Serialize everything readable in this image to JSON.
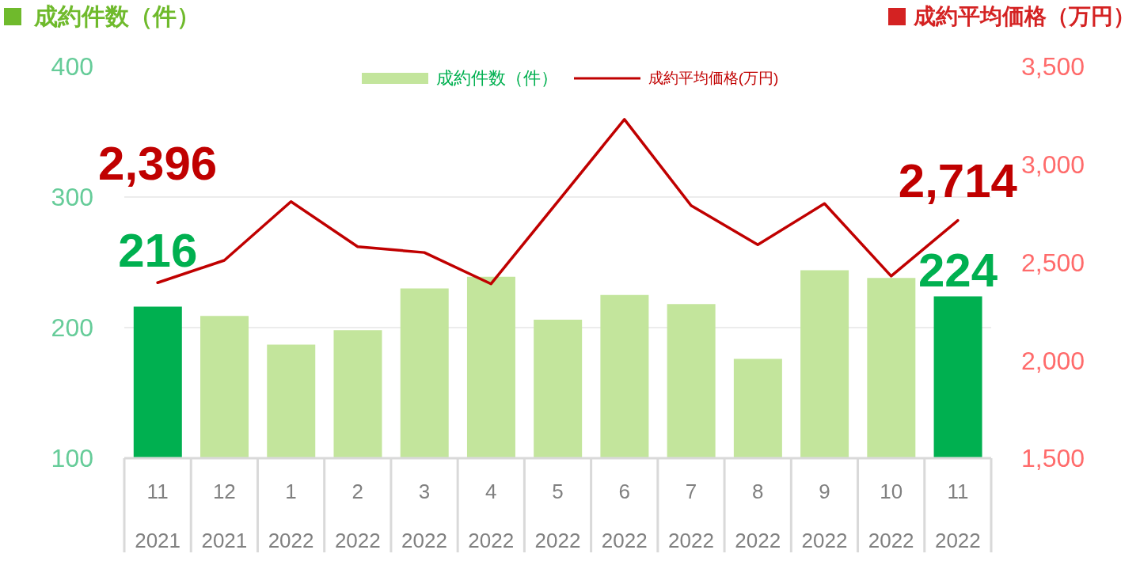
{
  "chart_data": {
    "type": "bar",
    "ylabel": "成約件数（件）",
    "y2label": "成約平均価格（万円）",
    "categories": [
      "11\n2021",
      "12\n2021",
      "1\n2022",
      "2\n2022",
      "3\n2022",
      "4\n2022",
      "5\n2022",
      "6\n2022",
      "7\n2022",
      "8\n2022",
      "9\n2022",
      "10\n2022",
      "11\n2022"
    ],
    "series": [
      {
        "name": "成約件数（件）",
        "color": "#c3e59c",
        "colors": [
          "#00b050",
          "#c3e59c",
          "#c3e59c",
          "#c3e59c",
          "#c3e59c",
          "#c3e59c",
          "#c3e59c",
          "#c3e59c",
          "#c3e59c",
          "#c3e59c",
          "#c3e59c",
          "#c3e59c",
          "#00b050"
        ],
        "values": [
          216,
          209,
          187,
          198,
          230,
          239,
          206,
          225,
          218,
          176,
          244,
          238,
          224
        ],
        "value_labels": [
          "216",
          null,
          null,
          null,
          null,
          null,
          null,
          null,
          null,
          null,
          null,
          null,
          "224"
        ]
      },
      {
        "name": "成約平均価格(万円)",
        "type": "line",
        "axis": "y2",
        "color": "#c00000",
        "values": [
          2396,
          2510,
          2810,
          2580,
          2550,
          2390,
          2810,
          3230,
          2790,
          2590,
          2800,
          2430,
          2714
        ],
        "value_labels": [
          "2,396",
          null,
          null,
          null,
          null,
          null,
          null,
          null,
          null,
          null,
          null,
          null,
          "2,714"
        ]
      }
    ],
    "ylim": [
      100,
      400
    ],
    "yticks": [
      100,
      200,
      300,
      400
    ],
    "y2lim": [
      1500,
      3500
    ],
    "y2ticks": [
      {
        "value": 1500,
        "label": "1,500"
      },
      {
        "value": 2000,
        "label": "2,000"
      },
      {
        "value": 2500,
        "label": "2,500"
      },
      {
        "value": 3000,
        "label": "3,000"
      },
      {
        "value": 3500,
        "label": "3,500"
      }
    ],
    "grid": "y",
    "legend": "top"
  }
}
